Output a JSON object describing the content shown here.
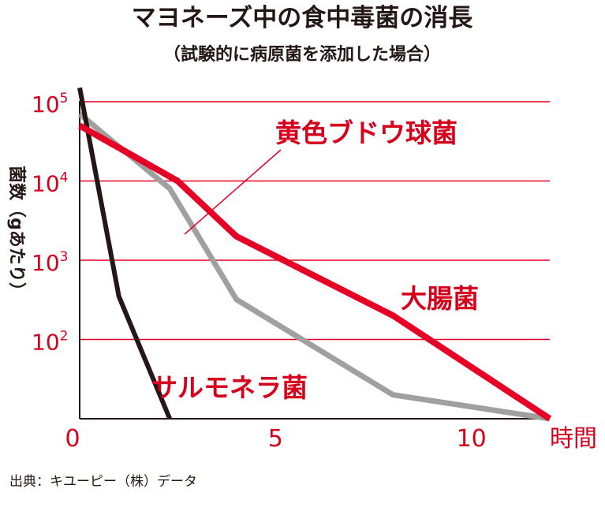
{
  "chart_data": {
    "type": "line",
    "title": "マヨネーズ中の食中毒菌の消長",
    "subtitle": "（試験的に病原菌を添加した場合）",
    "ylabel": "菌数（gあたり）",
    "xlabel": "時間",
    "xlim": [
      0,
      12
    ],
    "x_ticks": [
      {
        "value": 0,
        "label": "0"
      },
      {
        "value": 5,
        "label": "5"
      },
      {
        "value": 10,
        "label": "10"
      }
    ],
    "y_scale": "log",
    "ylim": [
      10,
      150000
    ],
    "y_ticks": [
      {
        "value": 100000,
        "base": "10",
        "exp": "5"
      },
      {
        "value": 10000,
        "base": "10",
        "exp": "4"
      },
      {
        "value": 1000,
        "base": "10",
        "exp": "3"
      },
      {
        "value": 100,
        "base": "10",
        "exp": "2"
      }
    ],
    "grid": true,
    "series": [
      {
        "name": "黄色ブドウ球菌",
        "color": "#e60026",
        "x": [
          0,
          2.5,
          4,
          8,
          12
        ],
        "y": [
          50000,
          10000,
          2000,
          200,
          10
        ]
      },
      {
        "name": "大腸菌",
        "color": "#a0a0a0",
        "x": [
          0,
          2.3,
          4,
          6,
          8,
          12
        ],
        "y": [
          70000,
          8000,
          320,
          80,
          20,
          10
        ]
      },
      {
        "name": "サルモネラ菌",
        "color": "#231815",
        "x": [
          0,
          1,
          2.3
        ],
        "y": [
          150000,
          350,
          10
        ]
      }
    ],
    "source": "出典：キユーピー（株）データ"
  }
}
